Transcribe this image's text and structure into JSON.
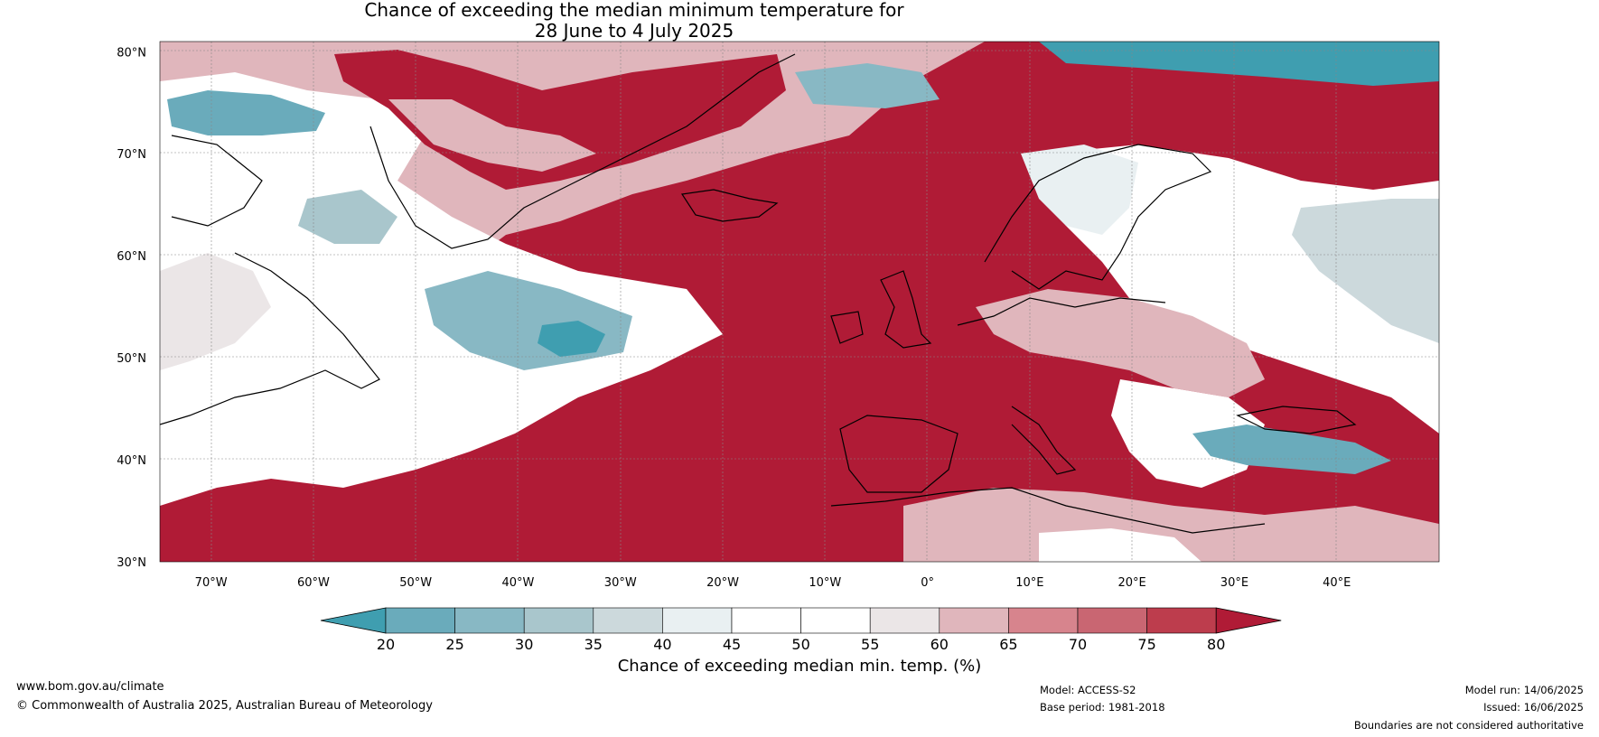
{
  "title": {
    "line1": "Chance of exceeding the median minimum temperature for",
    "line2": "28 June to 4 July 2025"
  },
  "map": {
    "lat_labels": [
      "80°N",
      "70°N",
      "60°N",
      "50°N",
      "40°N",
      "30°N"
    ],
    "lon_labels": [
      "70°W",
      "60°W",
      "50°W",
      "40°W",
      "30°W",
      "20°W",
      "10°W",
      "0°",
      "10°E",
      "20°E",
      "30°E",
      "40°E"
    ],
    "extent": {
      "lon_min": -75,
      "lon_max": 50,
      "lat_min": 30,
      "lat_max": 81
    }
  },
  "colorbar": {
    "ticks": [
      "20",
      "25",
      "30",
      "35",
      "40",
      "45",
      "50",
      "55",
      "60",
      "65",
      "70",
      "75",
      "80"
    ],
    "colors": [
      "#3f9eb0",
      "#6aabbb",
      "#88b8c4",
      "#a9c6cc",
      "#ccd9dc",
      "#e9f0f2",
      "#ffffff",
      "#ffffff",
      "#ebe6e7",
      "#e0b6bc",
      "#d7848d",
      "#c96672",
      "#bd3d4d",
      "#b01b36"
    ],
    "label": "Chance of exceeding median min. temp. (%)"
  },
  "footer": {
    "url": "www.bom.gov.au/climate",
    "copyright": "© Commonwealth of Australia 2025, Australian Bureau of Meteorology",
    "model": "Model: ACCESS-S2",
    "base_period": "Base period: 1981-2018",
    "model_run": "Model run: 14/06/2025",
    "issued": "Issued: 16/06/2025",
    "disclaimer": "Boundaries are not considered authoritative"
  }
}
